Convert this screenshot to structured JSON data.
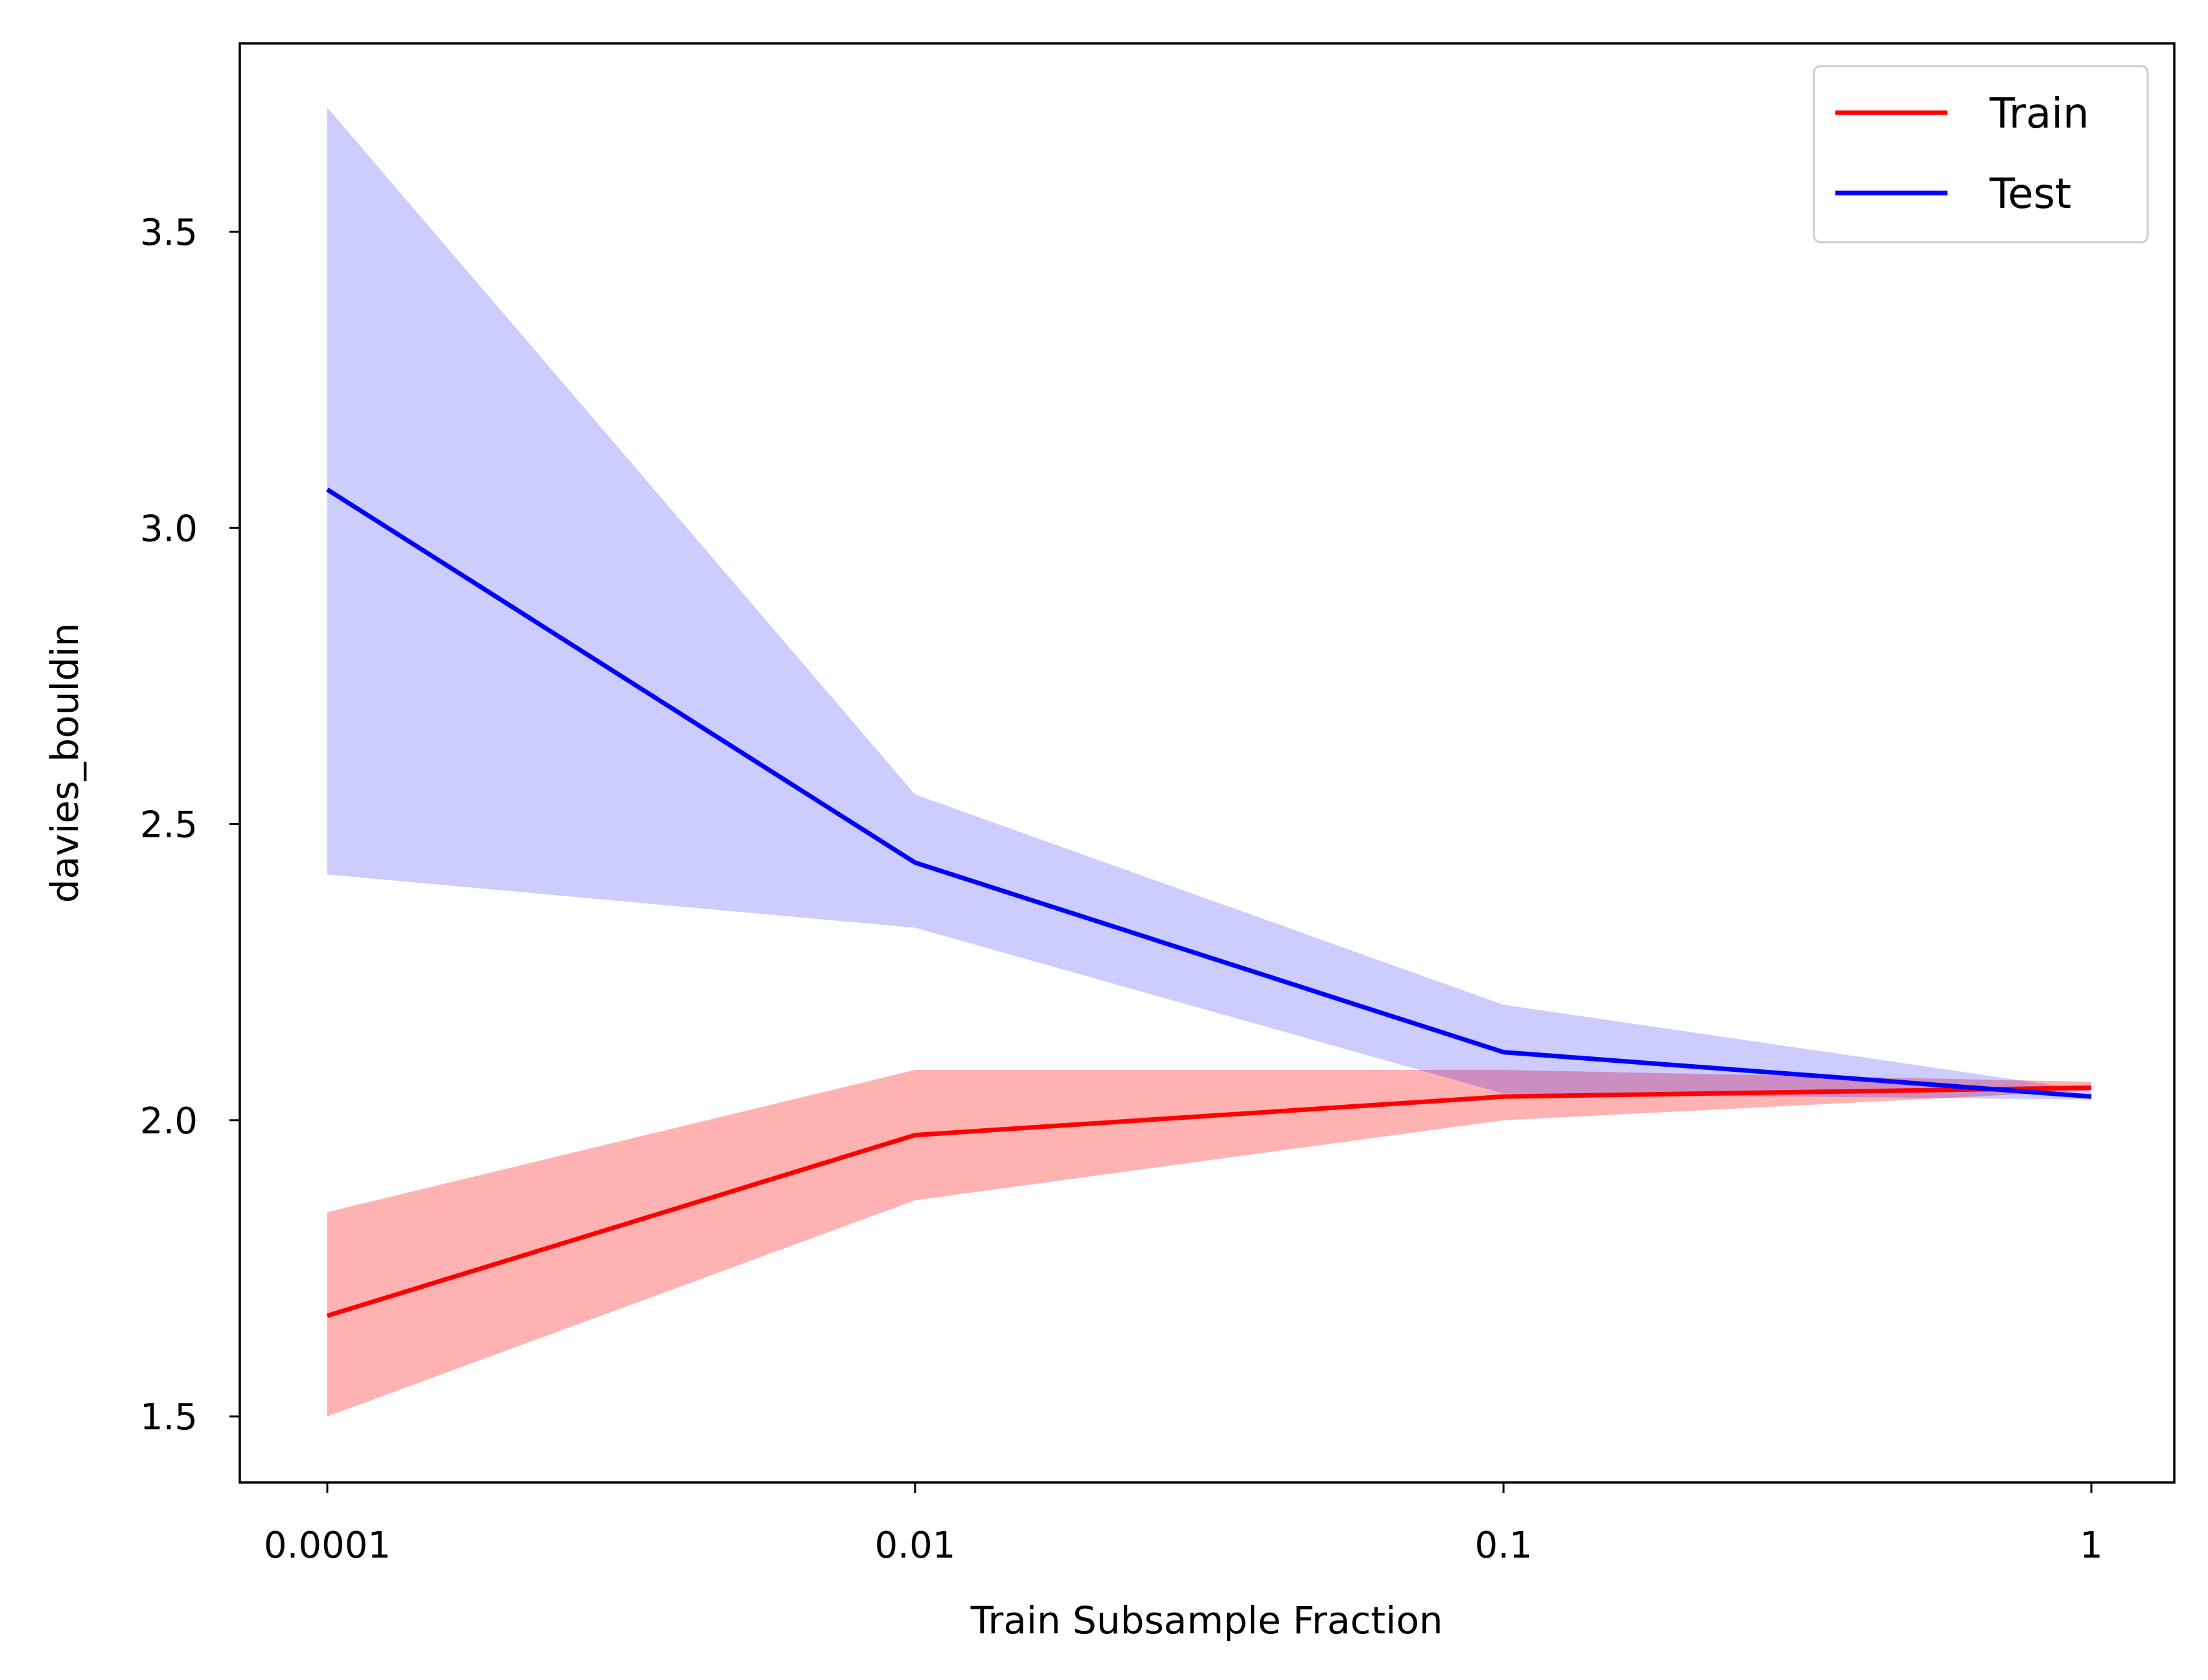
{
  "chart_data": {
    "type": "line",
    "title": "",
    "xlabel": "Train Subsample Fraction",
    "ylabel": "davies_bouldin",
    "x_scale": "categorical",
    "categories": [
      "0.0001",
      "0.01",
      "0.1",
      "1"
    ],
    "ylim": [
      1.39,
      3.82
    ],
    "yticks": [
      1.5,
      2.0,
      2.5,
      3.0,
      3.5
    ],
    "ytick_labels": [
      "1.5",
      "2.0",
      "2.5",
      "3.0",
      "3.5"
    ],
    "grid": false,
    "legend_position": "top-right",
    "series": [
      {
        "name": "Train",
        "color": "#ff0000",
        "band_color": "#ff0000",
        "band_opacity": 0.3,
        "values": [
          1.67,
          1.975,
          2.04,
          2.055
        ],
        "lower": [
          1.5,
          1.865,
          2.0,
          2.05
        ],
        "upper": [
          1.845,
          2.085,
          2.085,
          2.065
        ]
      },
      {
        "name": "Test",
        "color": "#0000ff",
        "band_color": "#0000ff",
        "band_opacity": 0.2,
        "values": [
          3.065,
          2.435,
          2.115,
          2.04
        ],
        "lower": [
          2.415,
          2.325,
          2.045,
          2.035
        ],
        "upper": [
          3.71,
          2.55,
          2.195,
          2.05
        ]
      }
    ]
  }
}
